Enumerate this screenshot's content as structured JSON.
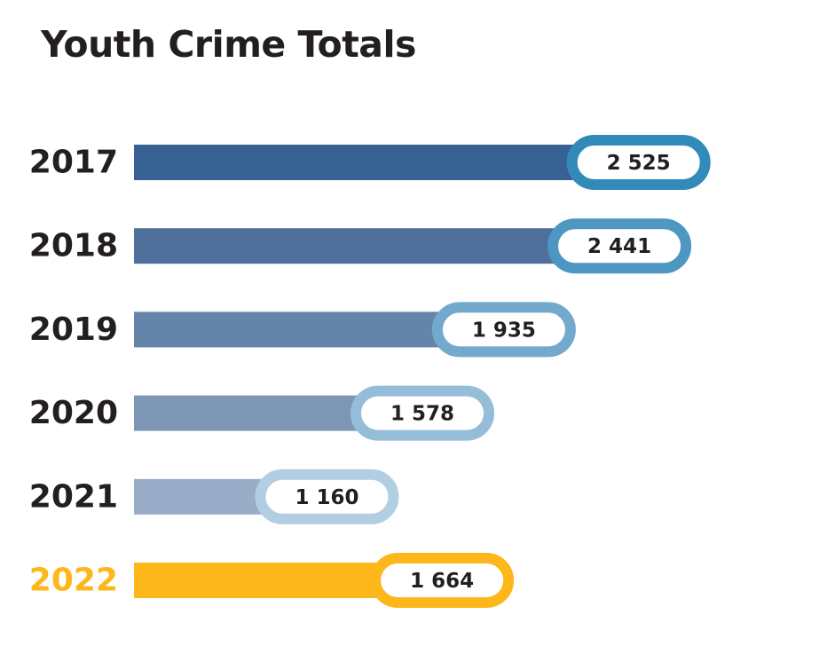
{
  "chart_data": {
    "type": "bar",
    "orientation": "horizontal",
    "title": "Youth Crime Totals",
    "categories": [
      "2017",
      "2018",
      "2019",
      "2020",
      "2021",
      "2022"
    ],
    "values": [
      2525,
      2441,
      1935,
      1578,
      1160,
      1664
    ],
    "value_labels": [
      "2 525",
      "2 441",
      "1 935",
      "1 578",
      "1 160",
      "1 664"
    ],
    "bar_colors": [
      "#376192",
      "#4f709a",
      "#6584a9",
      "#7e96b6",
      "#99adc9",
      "#fdb71b"
    ],
    "pill_border_colors": [
      "#318ab8",
      "#4d97c2",
      "#73a9cd",
      "#95bdd9",
      "#b1cee2",
      "#fdb71b"
    ],
    "label_colors": [
      "#231f20",
      "#231f20",
      "#231f20",
      "#231f20",
      "#231f20",
      "#fdb71b"
    ],
    "grid": false,
    "legend": "none"
  }
}
